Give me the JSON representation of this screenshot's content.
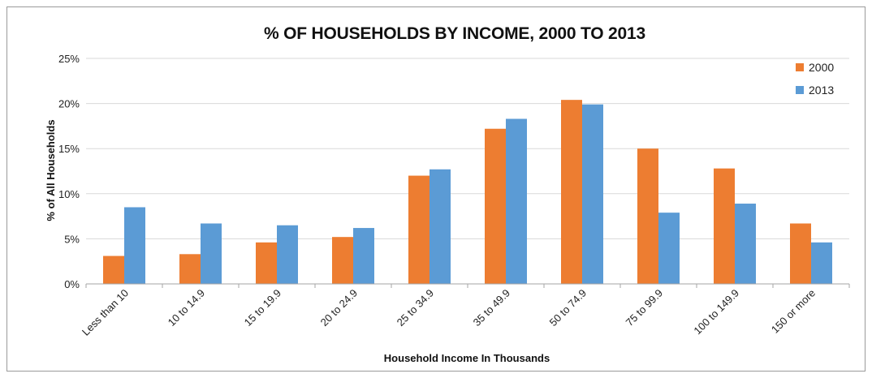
{
  "chart_data": {
    "type": "bar",
    "title": "% OF HOUSEHOLDS BY INCOME, 2000 TO 2013",
    "xlabel": "Household Income In Thousands",
    "ylabel": "% of All Households",
    "categories": [
      "Less than 10",
      "10 to 14.9",
      "15 to 19.9",
      "20 to 24.9",
      "25 to 34.9",
      "35 to 49.9",
      "50 to 74.9",
      "75 to 99.9",
      "100 to 149.9",
      "150 or more"
    ],
    "series": [
      {
        "name": "2000",
        "color": "#ED7D31",
        "values": [
          3.1,
          3.3,
          4.6,
          5.2,
          12.0,
          17.2,
          20.4,
          15.0,
          12.8,
          6.7
        ]
      },
      {
        "name": "2013",
        "color": "#5B9BD5",
        "values": [
          8.5,
          6.7,
          6.5,
          6.2,
          12.7,
          18.3,
          19.9,
          7.9,
          8.9,
          4.6
        ]
      }
    ],
    "ylim": [
      0,
      25
    ],
    "yticks": [
      0,
      5,
      10,
      15,
      20,
      25
    ],
    "ytick_labels": [
      "0%",
      "5%",
      "10%",
      "15%",
      "20%",
      "25%"
    ],
    "grid": true,
    "legend_position": "top-right"
  }
}
